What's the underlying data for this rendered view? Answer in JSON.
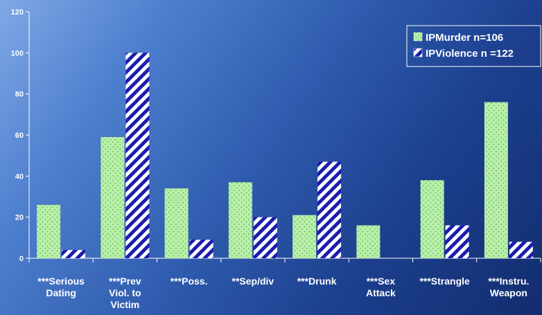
{
  "chart_data": {
    "type": "bar",
    "categories": [
      [
        "***Serious",
        "Dating"
      ],
      [
        "***Prev",
        "Viol. to",
        "Victim"
      ],
      [
        "***Poss."
      ],
      [
        "**Sep/div"
      ],
      [
        "***Drunk"
      ],
      [
        "***Sex",
        "Attack"
      ],
      [
        "***Strangle"
      ],
      [
        "***Instru.",
        "Weapon"
      ]
    ],
    "series": [
      {
        "name": "IPMurder n=106",
        "values": [
          26,
          59,
          34,
          37,
          21,
          16,
          38,
          76
        ],
        "color": "#b9f0a6",
        "pattern": "dots"
      },
      {
        "name": "IPViolence n =122",
        "values": [
          4,
          100,
          9,
          20,
          47,
          0,
          16,
          8
        ],
        "color": "#1c1cae",
        "pattern": "diagonal-stripes"
      }
    ],
    "ylim": [
      0,
      120
    ],
    "yticks": [
      0,
      20,
      40,
      60,
      80,
      100,
      120
    ],
    "grid": false,
    "legend_position": "top-right",
    "title": "",
    "xlabel": "",
    "ylabel": ""
  }
}
